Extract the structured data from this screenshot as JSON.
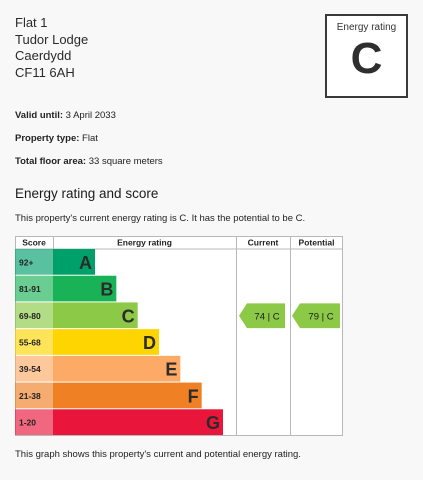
{
  "address": [
    "Flat 1",
    "Tudor Lodge",
    "Caerdydd",
    "CF11 6AH"
  ],
  "rating_box": {
    "label": "Energy rating",
    "grade": "C"
  },
  "details": {
    "valid_until_label": "Valid until:",
    "valid_until": "3 April 2033",
    "property_type_label": "Property type:",
    "property_type": "Flat",
    "floor_area_label": "Total floor area:",
    "floor_area": "33 square meters"
  },
  "section_title": "Energy rating and score",
  "intro": "This property's current energy rating is C. It has the potential to be C.",
  "footnote": "This graph shows this property's current and potential energy rating.",
  "chart_data": {
    "type": "bar",
    "headers": [
      "Score",
      "Energy rating",
      "Current",
      "Potential"
    ],
    "bands": [
      {
        "score": "92+",
        "letter": "A",
        "color": "#00a06b"
      },
      {
        "score": "81-91",
        "letter": "B",
        "color": "#1ab257"
      },
      {
        "score": "69-80",
        "letter": "C",
        "color": "#8bc947"
      },
      {
        "score": "55-68",
        "letter": "D",
        "color": "#ffd500"
      },
      {
        "score": "39-54",
        "letter": "E",
        "color": "#fcaa65"
      },
      {
        "score": "21-38",
        "letter": "F",
        "color": "#ef8023"
      },
      {
        "score": "1-20",
        "letter": "G",
        "color": "#e9153b"
      }
    ],
    "current": {
      "value": 74,
      "grade": "C",
      "label": "74 | C",
      "color": "#8bc947"
    },
    "potential": {
      "value": 79,
      "grade": "C",
      "label": "79 | C",
      "color": "#8bc947"
    }
  }
}
